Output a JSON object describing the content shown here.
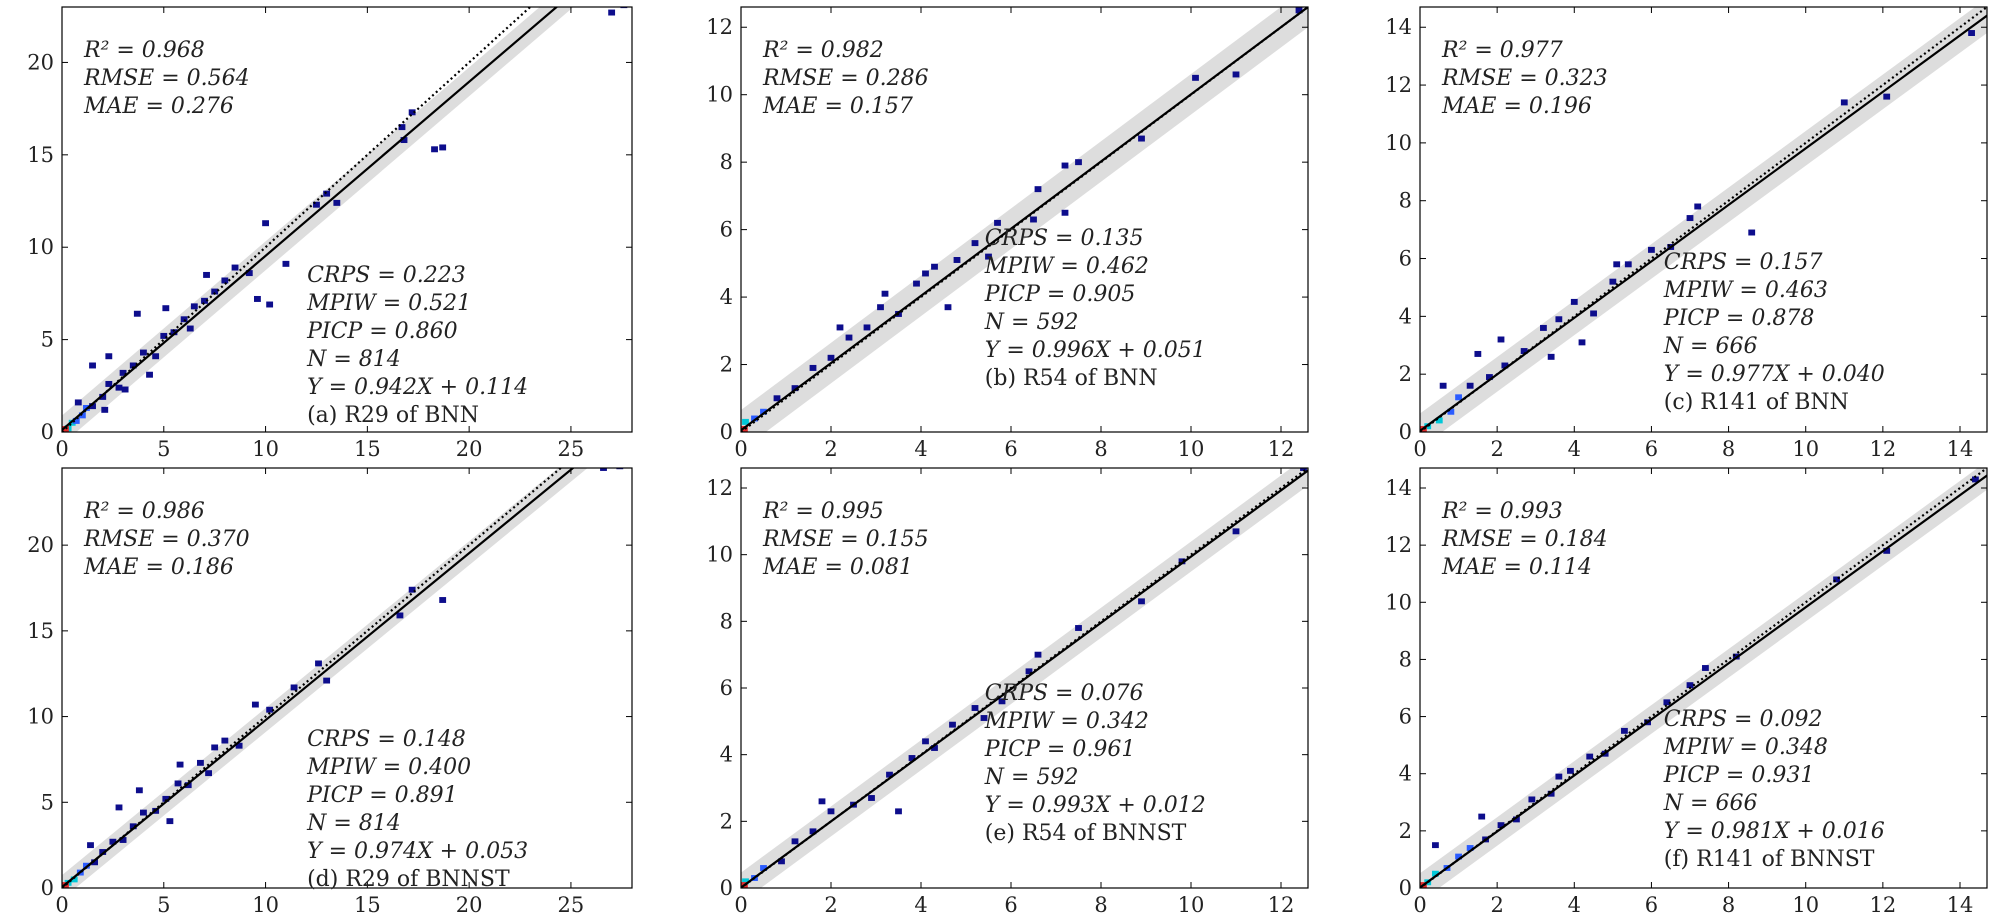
{
  "chart_data": [
    {
      "type": "scatter",
      "subtype": "2d-density-heatmap-parity",
      "caption": "(a) R29 of BNN",
      "xlim": [
        0,
        28
      ],
      "ylim": [
        0,
        23
      ],
      "xticks": [
        0,
        5,
        10,
        15,
        20,
        25
      ],
      "yticks": [
        0,
        5,
        10,
        15,
        20
      ],
      "stats_top": [
        "R² = 0.968",
        "RMSE = 0.564",
        "MAE = 0.276"
      ],
      "stats_bottom": [
        "CRPS = 0.223",
        "MPIW = 0.521",
        "PICP = 0.860",
        "N = 814",
        "Y = 0.942X + 0.114"
      ],
      "fit": {
        "slope": 0.942,
        "intercept": 0.114
      },
      "band_halfwidth": 0.78,
      "points": [
        [
          0.3,
          0.2,
          3
        ],
        [
          0.5,
          0.5,
          3
        ],
        [
          0.7,
          0.6,
          2
        ],
        [
          1,
          0.9,
          2
        ],
        [
          1.2,
          1.3,
          2
        ],
        [
          0.8,
          1.6,
          1
        ],
        [
          1.5,
          1.4,
          1
        ],
        [
          2,
          1.9,
          1
        ],
        [
          2.3,
          2.6,
          1
        ],
        [
          2.8,
          2.4,
          1
        ],
        [
          3,
          3.2,
          1
        ],
        [
          3.5,
          3.6,
          1
        ],
        [
          4,
          4.3,
          1
        ],
        [
          4.6,
          4.1,
          1
        ],
        [
          5,
          5.2,
          1
        ],
        [
          5.5,
          5.4,
          1
        ],
        [
          6,
          6.1,
          1
        ],
        [
          6.5,
          6.8,
          1
        ],
        [
          7,
          7.1,
          1
        ],
        [
          7.5,
          7.6,
          1
        ],
        [
          8,
          8.2,
          1
        ],
        [
          8.5,
          8.9,
          1
        ],
        [
          9.2,
          8.6,
          1
        ],
        [
          10,
          11.3,
          1
        ],
        [
          9.6,
          7.2,
          1
        ],
        [
          10.2,
          6.9,
          1
        ],
        [
          11,
          9.1,
          1
        ],
        [
          12.5,
          12.3,
          1
        ],
        [
          13,
          12.9,
          1
        ],
        [
          13.5,
          12.4,
          1
        ],
        [
          16.7,
          16.5,
          1
        ],
        [
          17.2,
          17.3,
          1
        ],
        [
          16.8,
          15.8,
          1
        ],
        [
          18.3,
          15.3,
          1
        ],
        [
          18.7,
          15.4,
          1
        ],
        [
          27,
          22.7,
          1
        ],
        [
          27.6,
          23.1,
          1
        ],
        [
          1.5,
          3.6,
          1
        ],
        [
          2.3,
          4.1,
          1
        ],
        [
          3.7,
          6.4,
          1
        ],
        [
          5.1,
          6.7,
          1
        ],
        [
          6.3,
          5.6,
          1
        ],
        [
          7.1,
          8.5,
          1
        ],
        [
          2.1,
          1.2,
          1
        ],
        [
          3.1,
          2.3,
          1
        ],
        [
          4.3,
          3.1,
          1
        ]
      ],
      "colors": {
        "fit_line": "#000000",
        "identity_line": "#000000",
        "band": "#dddddd",
        "density_low": "#0d0d8c",
        "density_mid": "#2b5cff",
        "density_high": "#00c8d8",
        "density_max": "#e02a2a"
      }
    },
    {
      "type": "scatter",
      "subtype": "2d-density-heatmap-parity",
      "caption": "(b) R54 of BNN",
      "xlim": [
        0,
        12.6
      ],
      "ylim": [
        0,
        12.6
      ],
      "xticks": [
        0,
        2,
        4,
        6,
        8,
        10,
        12
      ],
      "yticks": [
        0,
        2,
        4,
        6,
        8,
        10,
        12
      ],
      "stats_top": [
        "R² = 0.982",
        "RMSE = 0.286",
        "MAE = 0.157"
      ],
      "stats_bottom": [
        "CRPS = 0.135",
        "MPIW = 0.462",
        "PICP = 0.905",
        "N = 592",
        "Y = 0.996X + 0.051"
      ],
      "fit": {
        "slope": 0.996,
        "intercept": 0.051
      },
      "band_halfwidth": 0.6,
      "points": [
        [
          0.1,
          0.3,
          3
        ],
        [
          0.3,
          0.4,
          2
        ],
        [
          0.5,
          0.6,
          2
        ],
        [
          0.8,
          1,
          1
        ],
        [
          1.2,
          1.3,
          1
        ],
        [
          1.6,
          1.9,
          1
        ],
        [
          2,
          2.2,
          1
        ],
        [
          2.4,
          2.8,
          1
        ],
        [
          2.8,
          3.1,
          1
        ],
        [
          3.1,
          3.7,
          1
        ],
        [
          3.5,
          3.5,
          1
        ],
        [
          3.9,
          4.4,
          1
        ],
        [
          4.3,
          4.9,
          1
        ],
        [
          4.8,
          5.1,
          1
        ],
        [
          5.2,
          5.6,
          1
        ],
        [
          5.7,
          6.2,
          1
        ],
        [
          6.5,
          6.3,
          1
        ],
        [
          6.6,
          7.2,
          1
        ],
        [
          7.2,
          6.5,
          1
        ],
        [
          7.5,
          8,
          1
        ],
        [
          8.9,
          8.7,
          1
        ],
        [
          10.1,
          10.5,
          1
        ],
        [
          11,
          10.6,
          1
        ],
        [
          12.4,
          12.5,
          1
        ],
        [
          3.2,
          4.1,
          1
        ],
        [
          4.1,
          4.7,
          1
        ],
        [
          4.6,
          3.7,
          1
        ],
        [
          2.2,
          3.1,
          1
        ],
        [
          5.5,
          5.2,
          1
        ],
        [
          7.2,
          7.9,
          1
        ]
      ],
      "colors": {
        "fit_line": "#000000",
        "identity_line": "#000000",
        "band": "#dddddd",
        "density_low": "#0d0d8c",
        "density_mid": "#2b5cff",
        "density_high": "#00c8d8",
        "density_max": "#e02a2a"
      }
    },
    {
      "type": "scatter",
      "subtype": "2d-density-heatmap-parity",
      "caption": "(c) R141 of BNN",
      "xlim": [
        0,
        14.7
      ],
      "ylim": [
        0,
        14.7
      ],
      "xticks": [
        0,
        2,
        4,
        6,
        8,
        10,
        12,
        14
      ],
      "yticks": [
        0,
        2,
        4,
        6,
        8,
        10,
        12,
        14
      ],
      "stats_top": [
        "R² = 0.977",
        "RMSE = 0.323",
        "MAE = 0.196"
      ],
      "stats_bottom": [
        "CRPS = 0.157",
        "MPIW = 0.463",
        "PICP = 0.878",
        "N = 666",
        "Y = 0.977X + 0.040"
      ],
      "fit": {
        "slope": 0.977,
        "intercept": 0.04
      },
      "band_halfwidth": 0.6,
      "points": [
        [
          0.2,
          0.2,
          3
        ],
        [
          0.5,
          0.4,
          3
        ],
        [
          0.8,
          0.7,
          2
        ],
        [
          1,
          1.2,
          2
        ],
        [
          1.3,
          1.6,
          1
        ],
        [
          1.8,
          1.9,
          1
        ],
        [
          2.2,
          2.3,
          1
        ],
        [
          2.7,
          2.8,
          1
        ],
        [
          3.2,
          3.6,
          1
        ],
        [
          3.6,
          3.9,
          1
        ],
        [
          4,
          4.5,
          1
        ],
        [
          4.5,
          4.1,
          1
        ],
        [
          5,
          5.2,
          1
        ],
        [
          5.4,
          5.8,
          1
        ],
        [
          6,
          6.3,
          1
        ],
        [
          6.5,
          6.4,
          1
        ],
        [
          7,
          7.4,
          1
        ],
        [
          7.2,
          7.8,
          1
        ],
        [
          8.6,
          6.9,
          1
        ],
        [
          11,
          11.4,
          1
        ],
        [
          12.1,
          11.6,
          1
        ],
        [
          14.3,
          13.8,
          1
        ],
        [
          3.4,
          2.6,
          1
        ],
        [
          4.2,
          3.1,
          1
        ],
        [
          2.1,
          3.2,
          1
        ],
        [
          5.1,
          5.8,
          1
        ],
        [
          0.6,
          1.6,
          1
        ],
        [
          1.5,
          2.7,
          1
        ]
      ],
      "colors": {
        "fit_line": "#000000",
        "identity_line": "#000000",
        "band": "#dddddd",
        "density_low": "#0d0d8c",
        "density_mid": "#2b5cff",
        "density_high": "#00c8d8",
        "density_max": "#e02a2a"
      }
    },
    {
      "type": "scatter",
      "subtype": "2d-density-heatmap-parity",
      "caption": "(d) R29 of BNNST",
      "xlim": [
        0,
        28
      ],
      "ylim": [
        0,
        24.5
      ],
      "xticks": [
        0,
        5,
        10,
        15,
        20,
        25
      ],
      "yticks": [
        0,
        5,
        10,
        15,
        20
      ],
      "stats_top": [
        "R² = 0.986",
        "RMSE = 0.370",
        "MAE = 0.186"
      ],
      "stats_bottom": [
        "CRPS = 0.148",
        "MPIW = 0.400",
        "PICP = 0.891",
        "N = 814",
        "Y = 0.974X + 0.053"
      ],
      "fit": {
        "slope": 0.974,
        "intercept": 0.053
      },
      "band_halfwidth": 0.7,
      "points": [
        [
          0.3,
          0.3,
          3
        ],
        [
          0.6,
          0.5,
          3
        ],
        [
          0.9,
          0.9,
          2
        ],
        [
          1.2,
          1.3,
          2
        ],
        [
          1.6,
          1.5,
          1
        ],
        [
          2,
          2.1,
          1
        ],
        [
          2.5,
          2.7,
          1
        ],
        [
          3,
          2.8,
          1
        ],
        [
          3.5,
          3.6,
          1
        ],
        [
          4,
          4.4,
          1
        ],
        [
          4.6,
          4.5,
          1
        ],
        [
          5.1,
          5.2,
          1
        ],
        [
          5.7,
          6.1,
          1
        ],
        [
          6.2,
          6,
          1
        ],
        [
          6.8,
          7.3,
          1
        ],
        [
          7.5,
          8.2,
          1
        ],
        [
          8,
          8.6,
          1
        ],
        [
          8.7,
          8.3,
          1
        ],
        [
          9.5,
          10.7,
          1
        ],
        [
          10.2,
          10.4,
          1
        ],
        [
          11.4,
          11.7,
          1
        ],
        [
          12.6,
          13.1,
          1
        ],
        [
          13,
          12.1,
          1
        ],
        [
          16.6,
          15.9,
          1
        ],
        [
          17.2,
          17.4,
          1
        ],
        [
          18.7,
          16.8,
          1
        ],
        [
          27.4,
          24.6,
          1
        ],
        [
          26.6,
          24.5,
          1
        ],
        [
          2.8,
          4.7,
          1
        ],
        [
          5.3,
          3.9,
          1
        ],
        [
          1.4,
          2.5,
          1
        ],
        [
          3.8,
          5.7,
          1
        ],
        [
          7.2,
          6.7,
          1
        ],
        [
          5.8,
          7.2,
          1
        ]
      ],
      "colors": {
        "fit_line": "#000000",
        "identity_line": "#000000",
        "band": "#dddddd",
        "density_low": "#0d0d8c",
        "density_mid": "#2b5cff",
        "density_high": "#00c8d8",
        "density_max": "#e02a2a"
      }
    },
    {
      "type": "scatter",
      "subtype": "2d-density-heatmap-parity",
      "caption": "(e) R54 of BNNST",
      "xlim": [
        0,
        12.6
      ],
      "ylim": [
        0,
        12.6
      ],
      "xticks": [
        0,
        2,
        4,
        6,
        8,
        10,
        12
      ],
      "yticks": [
        0,
        2,
        4,
        6,
        8,
        10,
        12
      ],
      "stats_top": [
        "R² = 0.995",
        "RMSE = 0.155",
        "MAE = 0.081"
      ],
      "stats_bottom": [
        "CRPS = 0.076",
        "MPIW = 0.342",
        "PICP = 0.961",
        "N = 592",
        "Y = 0.993X + 0.012"
      ],
      "fit": {
        "slope": 0.993,
        "intercept": 0.012
      },
      "band_halfwidth": 0.45,
      "points": [
        [
          0.1,
          0.2,
          3
        ],
        [
          0.3,
          0.3,
          2
        ],
        [
          0.5,
          0.6,
          2
        ],
        [
          0.9,
          0.8,
          1
        ],
        [
          1.2,
          1.4,
          1
        ],
        [
          1.6,
          1.7,
          1
        ],
        [
          2,
          2.3,
          1
        ],
        [
          2.5,
          2.5,
          1
        ],
        [
          2.9,
          2.7,
          1
        ],
        [
          3.3,
          3.4,
          1
        ],
        [
          3.8,
          3.9,
          1
        ],
        [
          4.3,
          4.2,
          1
        ],
        [
          4.7,
          4.9,
          1
        ],
        [
          5.2,
          5.4,
          1
        ],
        [
          5.8,
          5.6,
          1
        ],
        [
          6.4,
          6.5,
          1
        ],
        [
          6.6,
          7,
          1
        ],
        [
          7.5,
          7.8,
          1
        ],
        [
          8.9,
          8.6,
          1
        ],
        [
          9.8,
          9.8,
          1
        ],
        [
          11,
          10.7,
          1
        ],
        [
          12.5,
          12.6,
          1
        ],
        [
          1.8,
          2.6,
          1
        ],
        [
          3.5,
          2.3,
          1
        ],
        [
          5.4,
          5.1,
          1
        ],
        [
          4.1,
          4.4,
          1
        ]
      ],
      "colors": {
        "fit_line": "#000000",
        "identity_line": "#000000",
        "band": "#dddddd",
        "density_low": "#0d0d8c",
        "density_mid": "#2b5cff",
        "density_high": "#00c8d8",
        "density_max": "#e02a2a"
      }
    },
    {
      "type": "scatter",
      "subtype": "2d-density-heatmap-parity",
      "caption": "(f) R141 of BNNST",
      "xlim": [
        0,
        14.7
      ],
      "ylim": [
        0,
        14.7
      ],
      "xticks": [
        0,
        2,
        4,
        6,
        8,
        10,
        12,
        14
      ],
      "yticks": [
        0,
        2,
        4,
        6,
        8,
        10,
        12,
        14
      ],
      "stats_top": [
        "R² = 0.993",
        "RMSE = 0.184",
        "MAE = 0.114"
      ],
      "stats_bottom": [
        "CRPS = 0.092",
        "MPIW = 0.348",
        "PICP = 0.931",
        "N = 666",
        "Y = 0.981X + 0.016"
      ],
      "fit": {
        "slope": 0.981,
        "intercept": 0.016
      },
      "band_halfwidth": 0.5,
      "points": [
        [
          0.2,
          0.2,
          3
        ],
        [
          0.4,
          0.5,
          3
        ],
        [
          0.7,
          0.7,
          2
        ],
        [
          1,
          1.1,
          2
        ],
        [
          1.3,
          1.4,
          2
        ],
        [
          1.7,
          1.7,
          1
        ],
        [
          2.1,
          2.2,
          1
        ],
        [
          2.5,
          2.4,
          1
        ],
        [
          2.9,
          3.1,
          1
        ],
        [
          3.4,
          3.3,
          1
        ],
        [
          3.9,
          4.1,
          1
        ],
        [
          4.4,
          4.6,
          1
        ],
        [
          4.8,
          4.7,
          1
        ],
        [
          5.3,
          5.5,
          1
        ],
        [
          5.9,
          5.8,
          1
        ],
        [
          6.4,
          6.5,
          1
        ],
        [
          7,
          7.1,
          1
        ],
        [
          7.4,
          7.7,
          1
        ],
        [
          8.2,
          8.1,
          1
        ],
        [
          10.8,
          10.8,
          1
        ],
        [
          12.1,
          11.8,
          1
        ],
        [
          14.4,
          14.3,
          1
        ],
        [
          0.4,
          1.5,
          1
        ],
        [
          1.6,
          2.5,
          1
        ],
        [
          3.6,
          3.9,
          1
        ]
      ],
      "colors": {
        "fit_line": "#000000",
        "identity_line": "#000000",
        "band": "#dddddd",
        "density_low": "#0d0d8c",
        "density_mid": "#2b5cff",
        "density_high": "#00c8d8",
        "density_max": "#e02a2a"
      }
    }
  ]
}
